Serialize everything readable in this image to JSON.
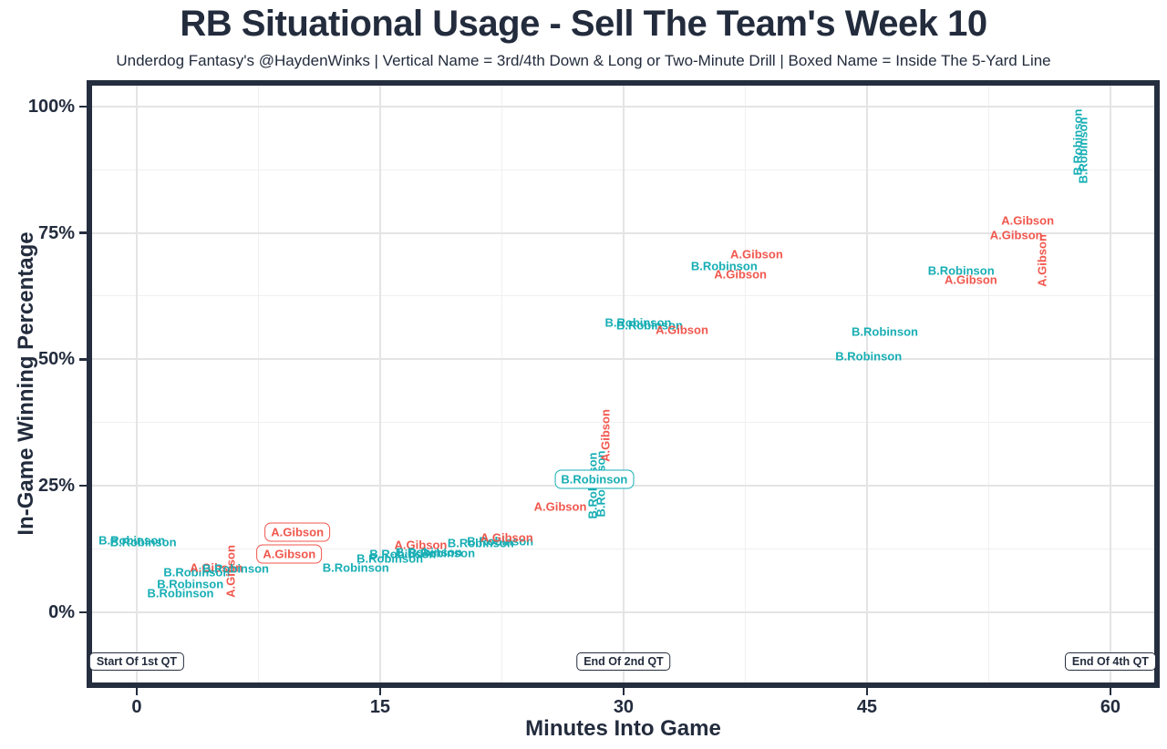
{
  "title": "RB Situational Usage - Sell The Team's Week 10",
  "subtitle": "Underdog Fantasy's @HaydenWinks | Vertical Name = 3rd/4th Down & Long or Two-Minute Drill | Boxed Name = Inside The 5-Yard Line",
  "colors": {
    "gibson": "#F1574D",
    "robinson": "#17AEB4",
    "axis_text": "#232C3D",
    "panel_border": "#252E3F",
    "grid_major": "#E4E4E6",
    "grid_minor": "#F0F0F2"
  },
  "chart_data": {
    "type": "scatter",
    "title": "RB Situational Usage - Sell The Team's Week 10",
    "xlabel": "Minutes Into Game",
    "ylabel": "In-Game Winning Percentage",
    "x_ticks": [
      0,
      15,
      30,
      45,
      60
    ],
    "x_minor_ticks": [
      7.5,
      22.5,
      37.5,
      52.5
    ],
    "y_ticks": [
      0,
      25,
      50,
      75,
      100
    ],
    "y_minor_ticks": [
      12.5,
      37.5,
      62.5,
      87.5
    ],
    "y_tick_labels": [
      "0%",
      "25%",
      "50%",
      "75%",
      "100%"
    ],
    "xlim": [
      -2.75,
      62.7
    ],
    "ylim": [
      -13.9,
      104.1
    ],
    "grid": true,
    "legend": "none",
    "series_names": [
      "A.Gibson",
      "B.Robinson"
    ],
    "annotations": [
      {
        "label": "Start Of 1st QT",
        "x": 0,
        "y": -9.7
      },
      {
        "label": "End Of 2nd QT",
        "x": 30,
        "y": -9.7
      },
      {
        "label": "End Of 4th QT",
        "x": 60,
        "y": -9.7
      }
    ],
    "points": [
      {
        "label": "B.Robinson",
        "series": "robinson",
        "x": -0.3,
        "y": 14.2
      },
      {
        "label": "B.Robinson",
        "series": "robinson",
        "x": 0.4,
        "y": 13.9
      },
      {
        "label": "B.Robinson",
        "series": "robinson",
        "x": 2.7,
        "y": 3.8
      },
      {
        "label": "B.Robinson",
        "series": "robinson",
        "x": 3.3,
        "y": 5.6
      },
      {
        "label": "B.Robinson",
        "series": "robinson",
        "x": 3.7,
        "y": 7.9
      },
      {
        "label": "A.Gibson",
        "series": "gibson",
        "x": 4.9,
        "y": 8.8
      },
      {
        "label": "A.Gibson",
        "series": "gibson",
        "x": 5.8,
        "y": 8.0,
        "orient": "v"
      },
      {
        "label": "B.Robinson",
        "series": "robinson",
        "x": 6.1,
        "y": 8.6
      },
      {
        "label": "A.Gibson",
        "series": "gibson",
        "x": 9.9,
        "y": 15.8,
        "boxed": true
      },
      {
        "label": "A.Gibson",
        "series": "gibson",
        "x": 9.4,
        "y": 11.5,
        "boxed": true
      },
      {
        "label": "B.Robinson",
        "series": "robinson",
        "x": 13.5,
        "y": 8.8
      },
      {
        "label": "B.Robinson",
        "series": "robinson",
        "x": 15.6,
        "y": 10.6
      },
      {
        "label": "B.Robinson",
        "series": "robinson",
        "x": 16.4,
        "y": 11.5
      },
      {
        "label": "A.Gibson",
        "series": "gibson",
        "x": 17.5,
        "y": 13.3
      },
      {
        "label": "B.Robinson",
        "series": "robinson",
        "x": 18.0,
        "y": 11.9
      },
      {
        "label": "B.Robinson",
        "series": "robinson",
        "x": 18.8,
        "y": 11.7
      },
      {
        "label": "B.Robinson",
        "series": "robinson",
        "x": 21.2,
        "y": 13.7
      },
      {
        "label": "B.Robinson",
        "series": "robinson",
        "x": 22.4,
        "y": 14.0
      },
      {
        "label": "A.Gibson",
        "series": "gibson",
        "x": 22.8,
        "y": 14.8
      },
      {
        "label": "A.Gibson",
        "series": "gibson",
        "x": 26.1,
        "y": 20.8
      },
      {
        "label": "B.Robinson",
        "series": "robinson",
        "x": 28.1,
        "y": 25.0,
        "orient": "v"
      },
      {
        "label": "B.Robinson",
        "series": "robinson",
        "x": 28.6,
        "y": 25.3,
        "orient": "v"
      },
      {
        "label": "B.Robinson",
        "series": "robinson",
        "x": 28.2,
        "y": 26.2,
        "boxed": true
      },
      {
        "label": "A.Gibson",
        "series": "gibson",
        "x": 28.9,
        "y": 35.0,
        "orient": "v"
      },
      {
        "label": "B.Robinson",
        "series": "robinson",
        "x": 30.9,
        "y": 57.3
      },
      {
        "label": "B.Robinson",
        "series": "robinson",
        "x": 31.6,
        "y": 56.8
      },
      {
        "label": "A.Gibson",
        "series": "gibson",
        "x": 33.6,
        "y": 55.9
      },
      {
        "label": "B.Robinson",
        "series": "robinson",
        "x": 36.2,
        "y": 68.5
      },
      {
        "label": "A.Gibson",
        "series": "gibson",
        "x": 37.2,
        "y": 66.8
      },
      {
        "label": "A.Gibson",
        "series": "gibson",
        "x": 38.2,
        "y": 70.8
      },
      {
        "label": "B.Robinson",
        "series": "robinson",
        "x": 45.1,
        "y": 50.6
      },
      {
        "label": "B.Robinson",
        "series": "robinson",
        "x": 46.1,
        "y": 55.5
      },
      {
        "label": "B.Robinson",
        "series": "robinson",
        "x": 50.8,
        "y": 67.6
      },
      {
        "label": "A.Gibson",
        "series": "gibson",
        "x": 51.4,
        "y": 65.8
      },
      {
        "label": "A.Gibson",
        "series": "gibson",
        "x": 54.2,
        "y": 74.6
      },
      {
        "label": "A.Gibson",
        "series": "gibson",
        "x": 54.9,
        "y": 77.5
      },
      {
        "label": "A.Gibson",
        "series": "gibson",
        "x": 55.8,
        "y": 69.5,
        "orient": "v"
      },
      {
        "label": "B.Robinson",
        "series": "robinson",
        "x": 58.0,
        "y": 93.0,
        "orient": "v"
      },
      {
        "label": "B.Robinson",
        "series": "robinson",
        "x": 58.3,
        "y": 91.3,
        "orient": "v"
      }
    ]
  }
}
